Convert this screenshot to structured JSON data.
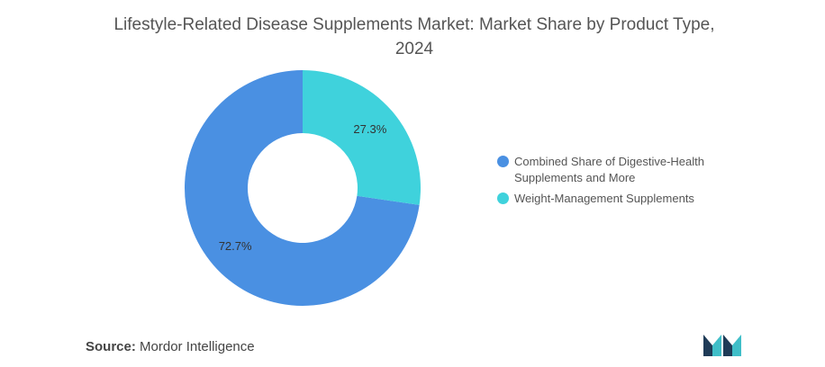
{
  "chart_data": {
    "type": "pie",
    "title": "Lifestyle-Related Disease Supplements Market: Market Share by Product Type, 2024",
    "categories": [
      "Combined Share of Digestive-Health Supplements and More",
      "Weight-Management Supplements"
    ],
    "values": [
      72.7,
      27.3
    ],
    "value_labels": [
      "72.7%",
      "27.3%"
    ],
    "colors": [
      "#4a90e2",
      "#3fd2dc"
    ],
    "donut": true,
    "legend_position": "right"
  },
  "footer": {
    "source_label": "Source:",
    "source_value": "Mordor Intelligence"
  },
  "logo": {
    "icon": "mordor-intelligence-logo-icon",
    "colors": [
      "#1f3b57",
      "#3fbec8"
    ]
  }
}
